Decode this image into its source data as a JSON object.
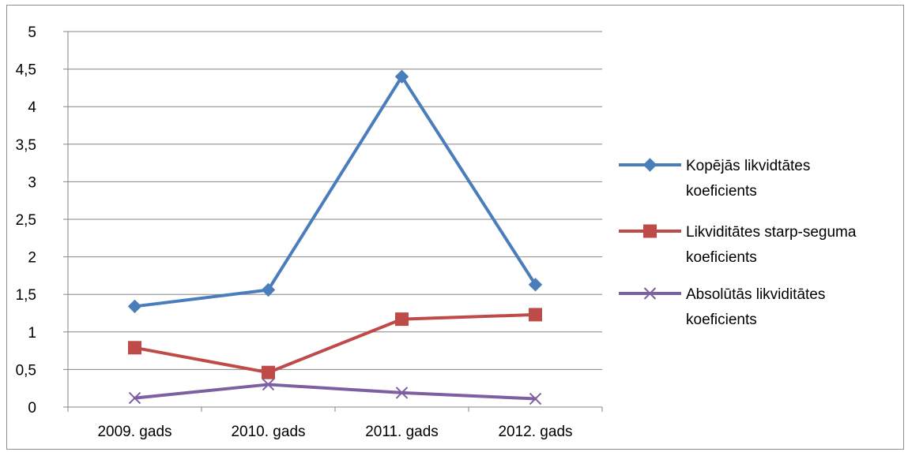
{
  "chart_data": {
    "type": "line",
    "title": "",
    "xlabel": "",
    "ylabel": "",
    "categories": [
      "2009. gads",
      "2010. gads",
      "2011. gads",
      "2012. gads"
    ],
    "ylim": [
      0,
      5
    ],
    "yticks": [
      0,
      0.5,
      1,
      1.5,
      2,
      2.5,
      3,
      3.5,
      4,
      4.5,
      5
    ],
    "ytick_labels": [
      "0",
      "0,5",
      "1",
      "1,5",
      "2",
      "2,5",
      "3",
      "3,5",
      "4",
      "4,5",
      "5"
    ],
    "grid": "horizontal",
    "legend_position": "right",
    "series": [
      {
        "name": "Kopējās likvidtātes koeficients",
        "legend_lines": [
          "Kopējās likvidtātes",
          "koeficients"
        ],
        "values": [
          1.34,
          1.56,
          4.4,
          1.63
        ],
        "color": "#4a7ebb",
        "marker": "diamond"
      },
      {
        "name": "Likviditātes starp-seguma koeficients",
        "legend_lines": [
          "Likviditātes starp-seguma",
          "koeficients"
        ],
        "values": [
          0.79,
          0.46,
          1.17,
          1.23
        ],
        "color": "#be4b48",
        "marker": "square"
      },
      {
        "name": "Absolūtās likviditātes koeficients",
        "legend_lines": [
          "Absolūtās likviditātes",
          "koeficients"
        ],
        "values": [
          0.12,
          0.3,
          0.19,
          0.11
        ],
        "color": "#7d60a0",
        "marker": "x"
      }
    ]
  }
}
